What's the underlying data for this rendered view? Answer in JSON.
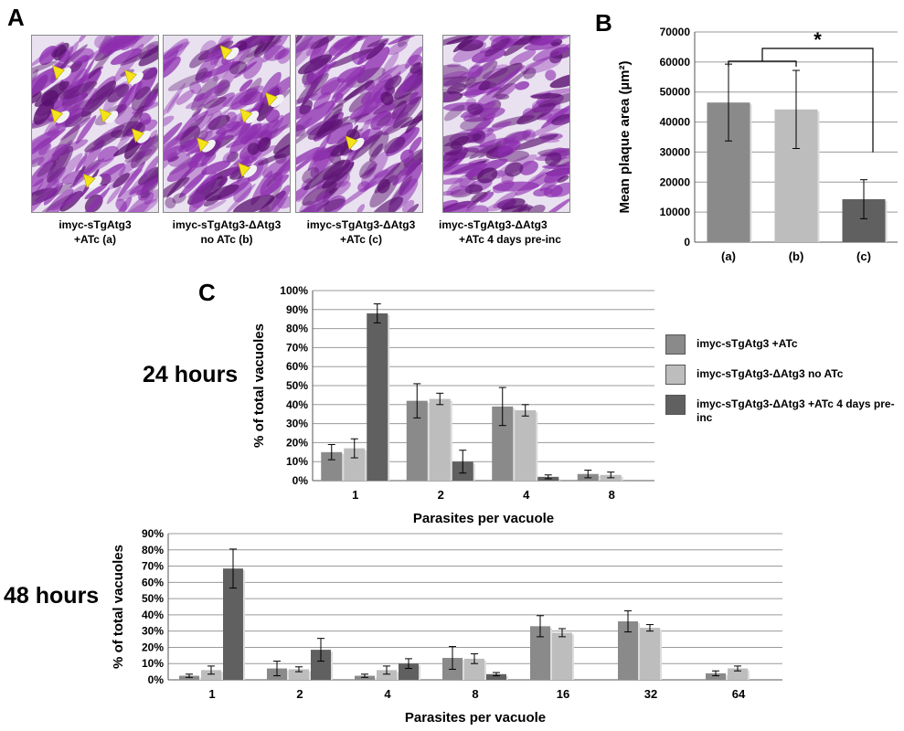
{
  "panels": {
    "a_letter": "A",
    "b_letter": "B",
    "c_letter": "C"
  },
  "photos": [
    {
      "caption_line1": "imyc-sTgAtg3",
      "caption_line2": "+ATc (a)",
      "arrowheads": 6
    },
    {
      "caption_line1": "imyc-sTgAtg3-ΔAtg3",
      "caption_line2": "no ATc (b)",
      "arrowheads": 5
    },
    {
      "caption_line1": "imyc-sTgAtg3-ΔAtg3",
      "caption_line2": "+ATc (c)",
      "arrowheads": 1
    },
    {
      "caption_line1": "imyc-sTgAtg3-ΔAtg3",
      "caption_line2": "+ATc 4 days pre-inc",
      "arrowheads": 0
    }
  ],
  "colors": {
    "stain": "#8e2fb0",
    "stain_dark": "#5a1070",
    "arrowhead": "#f5e31a",
    "series1": "#8a8a8a",
    "series2": "#bdbdbd",
    "series3": "#606060"
  },
  "legend": [
    {
      "label": "imyc-sTgAtg3 +ATc"
    },
    {
      "label": "imyc-sTgAtg3-ΔAtg3 no ATc"
    },
    {
      "label": "imyc-sTgAtg3-ΔAtg3 +ATc 4 days pre-inc"
    }
  ],
  "labels": {
    "h24": "24 hours",
    "h48": "48 hours"
  },
  "chart_data": [
    {
      "id": "B",
      "type": "bar",
      "categories": [
        "(a)",
        "(b)",
        "(c)"
      ],
      "values": [
        46500,
        44200,
        14300
      ],
      "errors": [
        12800,
        13000,
        6500
      ],
      "ylabel": "Mean plaque area (µm²)",
      "xlabel": "",
      "ylim": [
        0,
        70000
      ],
      "yticks": [
        "0",
        "10000",
        "20000",
        "30000",
        "40000",
        "50000",
        "60000",
        "70000"
      ],
      "grid": true,
      "significance": "*"
    },
    {
      "id": "C-24h",
      "type": "bar",
      "categories": [
        "1",
        "2",
        "4",
        "8"
      ],
      "series": [
        {
          "values": [
            15,
            42,
            39,
            3.5
          ],
          "errors": [
            4,
            9,
            10,
            2
          ]
        },
        {
          "values": [
            17,
            43,
            37,
            3
          ],
          "errors": [
            5,
            3,
            3,
            1.5
          ]
        },
        {
          "values": [
            88,
            10,
            2,
            0
          ],
          "errors": [
            5,
            6,
            1,
            0
          ]
        }
      ],
      "xlabel": "Parasites per vacuole",
      "ylabel": "% of total vacuoles",
      "ylim": [
        0,
        100
      ],
      "yticks": [
        "0%",
        "10%",
        "20%",
        "30%",
        "40%",
        "50%",
        "60%",
        "70%",
        "80%",
        "90%",
        "100%"
      ],
      "grid": true,
      "legend_position": "right"
    },
    {
      "id": "C-48h",
      "type": "bar",
      "categories": [
        "1",
        "2",
        "4",
        "8",
        "16",
        "32",
        "64"
      ],
      "series": [
        {
          "values": [
            2.5,
            7,
            2.5,
            13.5,
            33,
            36,
            4
          ],
          "errors": [
            1,
            4.5,
            1,
            7,
            6.5,
            6.5,
            1.5
          ]
        },
        {
          "values": [
            6,
            6.5,
            6,
            13,
            29,
            32,
            7
          ],
          "errors": [
            2.5,
            1.5,
            2.5,
            3,
            2.5,
            2,
            1.5
          ]
        },
        {
          "values": [
            68.5,
            18.5,
            10,
            3.5,
            0,
            0,
            0
          ],
          "errors": [
            12,
            7,
            3,
            1,
            0,
            0,
            0
          ]
        }
      ],
      "xlabel": "Parasites per vacuole",
      "ylabel": "% of total vacuoles",
      "ylim": [
        0,
        90
      ],
      "yticks": [
        "0%",
        "10%",
        "20%",
        "30%",
        "40%",
        "50%",
        "60%",
        "70%",
        "80%",
        "90%"
      ],
      "grid": true
    }
  ]
}
